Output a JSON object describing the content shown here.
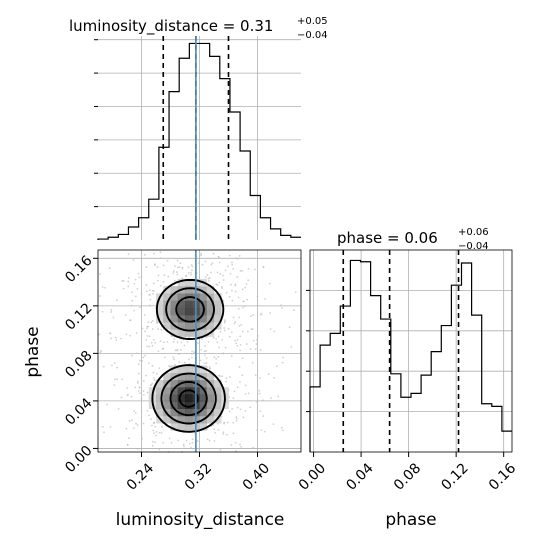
{
  "chart_data": {
    "type": "corner",
    "colors": {
      "hist_line": "#000000",
      "quantile_line": "#000000",
      "truth_line": "#4c8bbd",
      "grid": "#b0b0b0",
      "scatter": "#bdbdbd",
      "density_dark": "#000000",
      "density_light": "#f2f2f2"
    },
    "grid": true,
    "params": [
      {
        "name": "luminosity_distance",
        "range": [
          0.18,
          0.46
        ],
        "ticks": [
          "0.24",
          "0.32",
          "0.40"
        ],
        "tick_values": [
          0.24,
          0.32,
          0.4
        ],
        "title_prefix": "luminosity_distance = 0.31",
        "title_sup": "+0.05",
        "title_sub": "−0.04",
        "quantiles": [
          0.27,
          0.315,
          0.36
        ],
        "truth": 0.315,
        "hist_values": [
          0.5,
          1.5,
          3,
          7,
          12,
          22,
          50,
          80,
          98,
          106,
          106,
          99,
          87,
          69,
          48,
          24,
          12,
          6,
          2.5,
          1.5
        ],
        "hist_ylim": [
          0,
          110
        ]
      },
      {
        "name": "phase",
        "range": [
          -0.003,
          0.167
        ],
        "ticks": [
          "0.00",
          "0.04",
          "0.08",
          "0.12",
          "0.16"
        ],
        "tick_values": [
          0.0,
          0.04,
          0.08,
          0.12,
          0.16
        ],
        "title_prefix": "phase = 0.06",
        "title_sup": "+0.06",
        "title_sub": "−0.04",
        "quantiles": [
          0.025,
          0.064,
          0.122
        ],
        "hist_values": [
          50,
          82,
          91,
          112,
          147,
          146,
          120,
          102,
          60,
          42,
          45,
          59,
          77,
          97,
          128,
          145,
          105,
          37,
          35,
          16
        ],
        "hist_ylim": [
          0,
          155
        ]
      }
    ],
    "joint": {
      "x_param": "luminosity_distance",
      "y_param": "phase",
      "modes": [
        {
          "x": 0.307,
          "y": 0.117,
          "sx": 0.024,
          "sy": 0.013,
          "weight": 1.0
        },
        {
          "x": 0.305,
          "y": 0.042,
          "sx": 0.025,
          "sy": 0.014,
          "weight": 1.2
        }
      ],
      "contour_levels_sigma": [
        0.5,
        1.0,
        1.5,
        2.0
      ]
    },
    "labels": {
      "xlabel_left": "luminosity_distance",
      "xlabel_right": "phase",
      "ylabel": "phase"
    }
  }
}
